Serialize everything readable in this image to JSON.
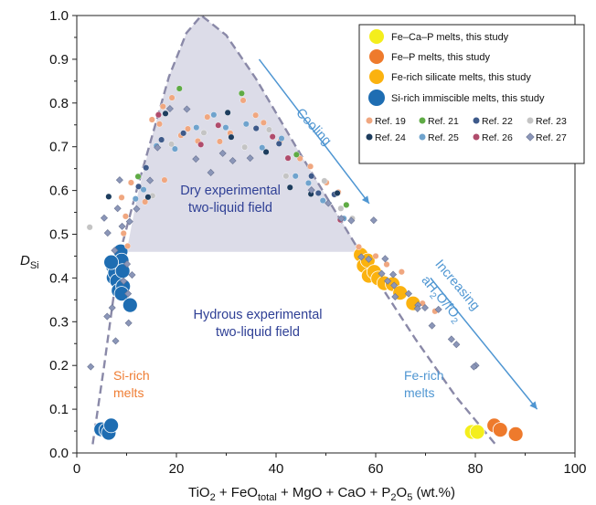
{
  "chart_data": {
    "type": "scatter",
    "xlabel_parts": [
      "TiO",
      "2",
      " + FeO",
      "total",
      " + MgO + CaO + P",
      "2",
      "O",
      "5",
      " (wt.%)"
    ],
    "ylabel_parts": [
      "D",
      "Si"
    ],
    "xlim": [
      0,
      100
    ],
    "ylim": [
      0,
      1.0
    ],
    "xticks": [
      "0",
      "20",
      "40",
      "60",
      "80",
      "100"
    ],
    "yticks": [
      "0.0",
      "0.1",
      "0.2",
      "0.3",
      "0.4",
      "0.5",
      "0.6",
      "0.7",
      "0.8",
      "0.9",
      "1.0"
    ],
    "grid": false,
    "legend_position": "top-right",
    "colors": {
      "fe_ca_p": "#f4ee1c",
      "fe_p": "#ee7a2c",
      "fe_rich_silicate": "#fbb20f",
      "si_rich": "#1e6db2",
      "ref19": "#f0a780",
      "ref21": "#5fab45",
      "ref22": "#3e5a8a",
      "ref23": "#c4c4c4",
      "ref24": "#1d3d5e",
      "ref25": "#6fa3cd",
      "ref26": "#b04c6c",
      "ref27": "#8b96b8",
      "curve": "#8a89a8",
      "field": "#dcdce8",
      "arrow": "#4f96d2",
      "field_label": "#2e3f95",
      "orange_label": "#ef7d33",
      "blue_label": "#4f96d2"
    },
    "annotations": {
      "dry_line1": "Dry experimental",
      "dry_line2": "two-liquid field",
      "hydrous_line1": "Hydrous experimental",
      "hydrous_line2": "two-liquid field",
      "si_rich_line1": "Si-rich",
      "si_rich_line2": "melts",
      "fe_rich_line1": "Fe-rich",
      "fe_rich_line2": "melts",
      "cooling": "Cooling",
      "increasing": "Increasing",
      "ah2o_parts": [
        "aH",
        "2",
        "O/fO",
        "2"
      ]
    },
    "legend": {
      "fe_ca_p": "Fe–Ca–P melts, this study",
      "fe_p": "Fe–P melts, this study",
      "fe_rich_silicate": "Fe-rich silicate melts, this study",
      "si_rich": "Si-rich immiscible melts, this study",
      "ref19": "Ref. 19",
      "ref21": "Ref. 21",
      "ref22": "Ref. 22",
      "ref23": "Ref. 23",
      "ref24": "Ref. 24",
      "ref25": "Ref. 25",
      "ref26": "Ref. 26",
      "ref27": "Ref. 27"
    },
    "series": [
      {
        "key": "fe_ca_p",
        "marker": "circle-large",
        "points": [
          [
            79.3,
            0.048
          ],
          [
            80.4,
            0.048
          ]
        ]
      },
      {
        "key": "fe_p",
        "marker": "circle-large",
        "points": [
          [
            83.8,
            0.063
          ],
          [
            85.0,
            0.053
          ],
          [
            88.1,
            0.043
          ]
        ]
      },
      {
        "key": "fe_rich_silicate",
        "marker": "circle-large",
        "points": [
          [
            57.0,
            0.453
          ],
          [
            57.6,
            0.428
          ],
          [
            58.4,
            0.44
          ],
          [
            58.6,
            0.405
          ],
          [
            59.7,
            0.414
          ],
          [
            60.5,
            0.399
          ],
          [
            61.7,
            0.388
          ],
          [
            63.4,
            0.386
          ],
          [
            64.9,
            0.366
          ],
          [
            67.5,
            0.342
          ]
        ]
      },
      {
        "key": "si_rich",
        "marker": "circle-large",
        "points": [
          [
            4.9,
            0.054
          ],
          [
            5.9,
            0.052
          ],
          [
            6.4,
            0.046
          ],
          [
            6.9,
            0.063
          ],
          [
            7.2,
            0.428
          ],
          [
            7.4,
            0.401
          ],
          [
            7.7,
            0.412
          ],
          [
            8.1,
            0.393
          ],
          [
            8.4,
            0.371
          ],
          [
            8.8,
            0.461
          ],
          [
            9.0,
            0.44
          ],
          [
            9.2,
            0.416
          ],
          [
            9.3,
            0.381
          ],
          [
            9.0,
            0.364
          ],
          [
            10.7,
            0.338
          ],
          [
            6.9,
            0.436
          ]
        ]
      },
      {
        "key": "ref19",
        "marker": "circle-small",
        "points": [
          [
            15.1,
            0.762
          ],
          [
            16.6,
            0.752
          ],
          [
            17.3,
            0.792
          ],
          [
            19.1,
            0.812
          ],
          [
            20.9,
            0.726
          ],
          [
            22.3,
            0.741
          ],
          [
            24.3,
            0.713
          ],
          [
            26.2,
            0.768
          ],
          [
            28.7,
            0.712
          ],
          [
            30.8,
            0.731
          ],
          [
            33.4,
            0.806
          ],
          [
            35.9,
            0.772
          ],
          [
            37.5,
            0.755
          ],
          [
            40.9,
            0.715
          ],
          [
            44.8,
            0.673
          ],
          [
            46.9,
            0.655
          ],
          [
            50.1,
            0.618
          ],
          [
            52.5,
            0.596
          ],
          [
            54.1,
            0.567
          ],
          [
            10.9,
            0.618
          ],
          [
            9.0,
            0.584
          ],
          [
            9.8,
            0.541
          ],
          [
            9.4,
            0.502
          ],
          [
            10.2,
            0.473
          ],
          [
            13.7,
            0.574
          ],
          [
            17.6,
            0.624
          ],
          [
            56.6,
            0.471
          ],
          [
            60.0,
            0.45
          ],
          [
            62.2,
            0.431
          ],
          [
            65.2,
            0.414
          ],
          [
            69.4,
            0.342
          ],
          [
            71.9,
            0.324
          ]
        ]
      },
      {
        "key": "ref21",
        "marker": "circle-small",
        "points": [
          [
            12.3,
            0.632
          ],
          [
            20.6,
            0.833
          ],
          [
            33.1,
            0.822
          ],
          [
            44.1,
            0.682
          ],
          [
            54.1,
            0.567
          ]
        ]
      },
      {
        "key": "ref22",
        "marker": "circle-small",
        "points": [
          [
            13.9,
            0.652
          ],
          [
            17.0,
            0.716
          ],
          [
            21.4,
            0.731
          ],
          [
            36.0,
            0.742
          ],
          [
            40.6,
            0.707
          ],
          [
            47.1,
            0.633
          ],
          [
            48.5,
            0.594
          ],
          [
            51.7,
            0.591
          ],
          [
            12.4,
            0.609
          ]
        ]
      },
      {
        "key": "ref23",
        "marker": "circle-small",
        "points": [
          [
            2.6,
            0.516
          ],
          [
            19.0,
            0.706
          ],
          [
            25.5,
            0.732
          ],
          [
            33.7,
            0.699
          ],
          [
            38.6,
            0.739
          ],
          [
            42.0,
            0.633
          ],
          [
            49.7,
            0.622
          ],
          [
            53.0,
            0.559
          ],
          [
            55.3,
            0.536
          ],
          [
            15.2,
            0.588
          ]
        ]
      },
      {
        "key": "ref24",
        "marker": "circle-small",
        "points": [
          [
            6.4,
            0.586
          ],
          [
            14.3,
            0.585
          ],
          [
            17.8,
            0.776
          ],
          [
            30.3,
            0.778
          ],
          [
            31.0,
            0.722
          ],
          [
            38.0,
            0.688
          ],
          [
            42.8,
            0.607
          ],
          [
            47.0,
            0.592
          ],
          [
            52.3,
            0.594
          ]
        ]
      },
      {
        "key": "ref25",
        "marker": "circle-small",
        "points": [
          [
            11.8,
            0.581
          ],
          [
            13.4,
            0.602
          ],
          [
            16.0,
            0.702
          ],
          [
            19.7,
            0.695
          ],
          [
            24.0,
            0.744
          ],
          [
            27.5,
            0.773
          ],
          [
            29.9,
            0.744
          ],
          [
            34.0,
            0.752
          ],
          [
            37.2,
            0.698
          ],
          [
            41.1,
            0.719
          ],
          [
            43.9,
            0.633
          ],
          [
            46.5,
            0.617
          ],
          [
            49.4,
            0.577
          ],
          [
            53.6,
            0.536
          ]
        ]
      },
      {
        "key": "ref26",
        "marker": "circle-small",
        "points": [
          [
            16.4,
            0.773
          ],
          [
            24.9,
            0.705
          ],
          [
            28.4,
            0.749
          ],
          [
            39.3,
            0.723
          ],
          [
            42.4,
            0.674
          ],
          [
            52.9,
            0.533
          ]
        ]
      },
      {
        "key": "ref27",
        "marker": "diamond",
        "points": [
          [
            18.7,
            0.787
          ],
          [
            22.1,
            0.786
          ],
          [
            23.9,
            0.672
          ],
          [
            26.9,
            0.641
          ],
          [
            29.3,
            0.685
          ],
          [
            31.3,
            0.668
          ],
          [
            34.8,
            0.674
          ],
          [
            16.2,
            0.698
          ],
          [
            14.7,
            0.623
          ],
          [
            12.0,
            0.558
          ],
          [
            10.6,
            0.529
          ],
          [
            8.6,
            0.624
          ],
          [
            8.2,
            0.559
          ],
          [
            5.5,
            0.537
          ],
          [
            6.2,
            0.503
          ],
          [
            9.1,
            0.518
          ],
          [
            7.6,
            0.463
          ],
          [
            10.1,
            0.432
          ],
          [
            11.1,
            0.407
          ],
          [
            9.4,
            0.393
          ],
          [
            10.3,
            0.364
          ],
          [
            7.1,
            0.332
          ],
          [
            6.1,
            0.312
          ],
          [
            10.4,
            0.297
          ],
          [
            7.8,
            0.256
          ],
          [
            2.8,
            0.197
          ],
          [
            47.1,
            0.601
          ],
          [
            50.5,
            0.571
          ],
          [
            53.1,
            0.536
          ],
          [
            55.1,
            0.531
          ],
          [
            57.1,
            0.448
          ],
          [
            58.6,
            0.443
          ],
          [
            61.2,
            0.41
          ],
          [
            63.5,
            0.408
          ],
          [
            63.7,
            0.383
          ],
          [
            66.6,
            0.364
          ],
          [
            68.5,
            0.338
          ],
          [
            69.9,
            0.332
          ],
          [
            72.6,
            0.328
          ],
          [
            71.3,
            0.291
          ],
          [
            75.2,
            0.26
          ],
          [
            76.2,
            0.248
          ],
          [
            80.1,
            0.2
          ],
          [
            79.7,
            0.197
          ],
          [
            59.6,
            0.532
          ],
          [
            61.9,
            0.444
          ],
          [
            62.4,
            0.393
          ],
          [
            63.9,
            0.357
          ],
          [
            68.4,
            0.33
          ]
        ]
      }
    ]
  }
}
